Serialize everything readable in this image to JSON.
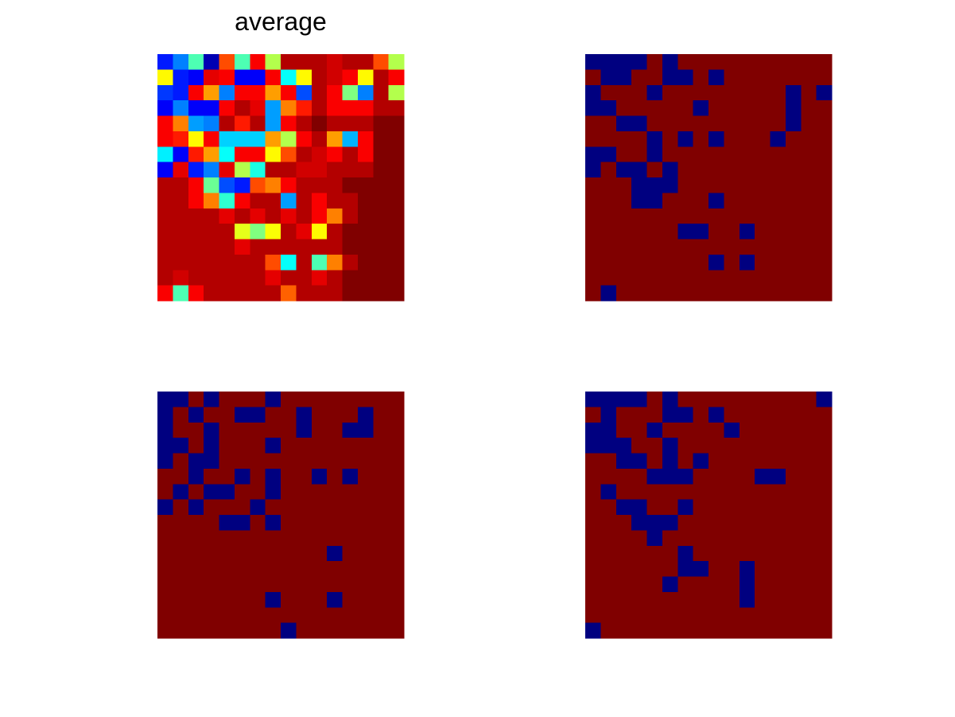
{
  "chart_data": [
    {
      "type": "heatmap",
      "title": "average",
      "colormap": "jet",
      "clim": [
        0,
        1
      ],
      "values": [
        [
          0.15,
          0.25,
          0.45,
          0.05,
          0.8,
          0.45,
          0.88,
          0.55,
          0.95,
          0.95,
          0.95,
          0.92,
          0.95,
          0.95,
          0.8,
          0.55
        ],
        [
          0.63,
          0.15,
          0.12,
          0.9,
          0.88,
          0.12,
          0.12,
          0.88,
          0.38,
          0.63,
          0.95,
          0.92,
          0.88,
          0.63,
          0.95,
          0.88
        ],
        [
          0.18,
          0.15,
          0.88,
          0.72,
          0.25,
          0.88,
          0.88,
          0.72,
          0.88,
          0.2,
          0.95,
          0.88,
          0.5,
          0.25,
          0.95,
          0.55
        ],
        [
          0.12,
          0.25,
          0.12,
          0.12,
          0.88,
          0.95,
          0.9,
          0.28,
          0.75,
          0.85,
          0.95,
          0.88,
          0.88,
          0.88,
          0.95,
          0.95
        ],
        [
          0.88,
          0.75,
          0.28,
          0.25,
          0.95,
          0.85,
          0.95,
          0.28,
          0.88,
          0.95,
          1,
          0.95,
          0.95,
          0.95,
          1,
          1
        ],
        [
          0.88,
          0.85,
          0.63,
          0.88,
          0.33,
          0.33,
          0.33,
          0.72,
          0.55,
          0.88,
          0.95,
          0.72,
          0.3,
          0.88,
          1,
          1
        ],
        [
          0.36,
          0.12,
          0.85,
          0.72,
          0.38,
          0.88,
          0.88,
          0.63,
          0.8,
          0.95,
          0.92,
          0.88,
          0.95,
          0.88,
          1,
          1
        ],
        [
          0.12,
          0.9,
          0.15,
          0.25,
          0.9,
          0.55,
          0.4,
          0.95,
          0.95,
          0.92,
          0.92,
          0.95,
          0.95,
          0.95,
          1,
          1
        ],
        [
          0.95,
          0.95,
          0.88,
          0.48,
          0.2,
          0.15,
          0.8,
          0.75,
          0.88,
          0.95,
          0.95,
          0.95,
          1,
          1,
          1,
          1
        ],
        [
          0.95,
          0.95,
          0.88,
          0.75,
          0.42,
          0.88,
          0.95,
          0.95,
          0.28,
          0.95,
          0.88,
          0.95,
          0.95,
          1,
          1,
          1
        ],
        [
          0.95,
          0.95,
          0.95,
          0.95,
          0.9,
          0.95,
          0.9,
          0.95,
          0.9,
          0.95,
          0.88,
          0.75,
          0.95,
          1,
          1,
          1
        ],
        [
          0.95,
          0.95,
          0.95,
          0.95,
          0.95,
          0.6,
          0.5,
          0.62,
          0.95,
          0.9,
          0.63,
          0.95,
          1,
          1,
          1,
          1
        ],
        [
          0.95,
          0.95,
          0.95,
          0.95,
          0.95,
          0.9,
          0.95,
          0.95,
          0.95,
          0.95,
          0.95,
          0.95,
          1,
          1,
          1,
          1
        ],
        [
          0.95,
          0.95,
          0.95,
          0.95,
          0.95,
          0.95,
          0.95,
          0.8,
          0.38,
          0.95,
          0.45,
          0.75,
          0.95,
          1,
          1,
          1
        ],
        [
          0.95,
          0.92,
          0.95,
          0.95,
          0.95,
          0.95,
          0.95,
          0.9,
          0.95,
          0.95,
          0.9,
          0.95,
          1,
          1,
          1,
          1
        ],
        [
          0.88,
          0.45,
          0.88,
          0.95,
          0.95,
          0.95,
          0.95,
          0.95,
          0.78,
          0.95,
          0.95,
          0.95,
          1,
          1,
          1,
          1
        ]
      ]
    },
    {
      "type": "heatmap",
      "colormap": "jet",
      "clim": [
        0,
        1
      ],
      "values": [
        [
          0,
          0,
          0,
          0,
          1,
          0,
          1,
          1,
          1,
          1,
          1,
          1,
          1,
          1,
          1,
          1
        ],
        [
          1,
          0,
          0,
          1,
          1,
          0,
          0,
          1,
          0,
          1,
          1,
          1,
          1,
          1,
          1,
          1
        ],
        [
          0,
          1,
          1,
          1,
          0,
          1,
          1,
          1,
          1,
          1,
          1,
          1,
          1,
          0,
          1,
          0
        ],
        [
          0,
          0,
          1,
          1,
          1,
          1,
          1,
          0,
          1,
          1,
          1,
          1,
          1,
          0,
          1,
          1
        ],
        [
          1,
          1,
          0,
          0,
          1,
          1,
          1,
          1,
          1,
          1,
          1,
          1,
          1,
          0,
          1,
          1
        ],
        [
          1,
          1,
          1,
          1,
          0,
          1,
          0,
          1,
          0,
          1,
          1,
          1,
          0,
          1,
          1,
          1
        ],
        [
          0,
          0,
          1,
          1,
          0,
          1,
          1,
          1,
          1,
          1,
          1,
          1,
          1,
          1,
          1,
          1
        ],
        [
          0,
          1,
          0,
          0,
          1,
          0,
          1,
          1,
          1,
          1,
          1,
          1,
          1,
          1,
          1,
          1
        ],
        [
          1,
          1,
          1,
          0,
          0,
          0,
          1,
          1,
          1,
          1,
          1,
          1,
          1,
          1,
          1,
          1
        ],
        [
          1,
          1,
          1,
          0,
          0,
          1,
          1,
          1,
          0,
          1,
          1,
          1,
          1,
          1,
          1,
          1
        ],
        [
          1,
          1,
          1,
          1,
          1,
          1,
          1,
          1,
          1,
          1,
          1,
          1,
          1,
          1,
          1,
          1
        ],
        [
          1,
          1,
          1,
          1,
          1,
          1,
          0,
          0,
          1,
          1,
          0,
          1,
          1,
          1,
          1,
          1
        ],
        [
          1,
          1,
          1,
          1,
          1,
          1,
          1,
          1,
          1,
          1,
          1,
          1,
          1,
          1,
          1,
          1
        ],
        [
          1,
          1,
          1,
          1,
          1,
          1,
          1,
          1,
          0,
          1,
          0,
          1,
          1,
          1,
          1,
          1
        ],
        [
          1,
          1,
          1,
          1,
          1,
          1,
          1,
          1,
          1,
          1,
          1,
          1,
          1,
          1,
          1,
          1
        ],
        [
          1,
          0,
          1,
          1,
          1,
          1,
          1,
          1,
          1,
          1,
          1,
          1,
          1,
          1,
          1,
          1
        ]
      ]
    },
    {
      "type": "heatmap",
      "colormap": "jet",
      "clim": [
        0,
        1
      ],
      "values": [
        [
          0,
          0,
          1,
          0,
          1,
          1,
          1,
          0,
          1,
          1,
          1,
          1,
          1,
          1,
          1,
          1
        ],
        [
          0,
          1,
          0,
          1,
          1,
          0,
          0,
          1,
          1,
          0,
          1,
          1,
          1,
          0,
          1,
          1
        ],
        [
          0,
          1,
          1,
          0,
          1,
          1,
          1,
          1,
          1,
          0,
          1,
          1,
          0,
          0,
          1,
          1
        ],
        [
          0,
          0,
          1,
          0,
          1,
          1,
          1,
          0,
          1,
          1,
          1,
          1,
          1,
          1,
          1,
          1
        ],
        [
          0,
          1,
          0,
          0,
          1,
          1,
          1,
          1,
          1,
          1,
          1,
          1,
          1,
          1,
          1,
          1
        ],
        [
          1,
          1,
          0,
          1,
          1,
          0,
          1,
          0,
          1,
          1,
          0,
          1,
          0,
          1,
          1,
          1
        ],
        [
          1,
          0,
          1,
          0,
          0,
          1,
          1,
          0,
          1,
          1,
          1,
          1,
          1,
          1,
          1,
          1
        ],
        [
          0,
          1,
          0,
          1,
          1,
          1,
          0,
          1,
          1,
          1,
          1,
          1,
          1,
          1,
          1,
          1
        ],
        [
          1,
          1,
          1,
          1,
          0,
          0,
          1,
          0,
          1,
          1,
          1,
          1,
          1,
          1,
          1,
          1
        ],
        [
          1,
          1,
          1,
          1,
          1,
          1,
          1,
          1,
          1,
          1,
          1,
          1,
          1,
          1,
          1,
          1
        ],
        [
          1,
          1,
          1,
          1,
          1,
          1,
          1,
          1,
          1,
          1,
          1,
          0,
          1,
          1,
          1,
          1
        ],
        [
          1,
          1,
          1,
          1,
          1,
          1,
          1,
          1,
          1,
          1,
          1,
          1,
          1,
          1,
          1,
          1
        ],
        [
          1,
          1,
          1,
          1,
          1,
          1,
          1,
          1,
          1,
          1,
          1,
          1,
          1,
          1,
          1,
          1
        ],
        [
          1,
          1,
          1,
          1,
          1,
          1,
          1,
          0,
          1,
          1,
          1,
          0,
          1,
          1,
          1,
          1
        ],
        [
          1,
          1,
          1,
          1,
          1,
          1,
          1,
          1,
          1,
          1,
          1,
          1,
          1,
          1,
          1,
          1
        ],
        [
          1,
          1,
          1,
          1,
          1,
          1,
          1,
          1,
          0,
          1,
          1,
          1,
          1,
          1,
          1,
          1
        ]
      ]
    },
    {
      "type": "heatmap",
      "colormap": "jet",
      "clim": [
        0,
        1
      ],
      "values": [
        [
          0,
          0,
          0,
          0,
          1,
          0,
          1,
          1,
          1,
          1,
          1,
          1,
          1,
          1,
          1,
          0
        ],
        [
          1,
          0,
          1,
          1,
          1,
          0,
          0,
          1,
          0,
          1,
          1,
          1,
          1,
          1,
          1,
          1
        ],
        [
          0,
          0,
          1,
          1,
          0,
          1,
          1,
          1,
          1,
          0,
          1,
          1,
          1,
          1,
          1,
          1
        ],
        [
          0,
          0,
          0,
          1,
          1,
          0,
          1,
          1,
          1,
          1,
          1,
          1,
          1,
          1,
          1,
          1
        ],
        [
          1,
          1,
          0,
          0,
          1,
          0,
          1,
          0,
          1,
          1,
          1,
          1,
          1,
          1,
          1,
          1
        ],
        [
          1,
          1,
          1,
          1,
          0,
          0,
          0,
          1,
          1,
          1,
          1,
          0,
          0,
          1,
          1,
          1
        ],
        [
          1,
          0,
          1,
          1,
          1,
          1,
          1,
          1,
          1,
          1,
          1,
          1,
          1,
          1,
          1,
          1
        ],
        [
          1,
          1,
          0,
          0,
          1,
          1,
          0,
          1,
          1,
          1,
          1,
          1,
          1,
          1,
          1,
          1
        ],
        [
          1,
          1,
          1,
          0,
          0,
          0,
          1,
          1,
          1,
          1,
          1,
          1,
          1,
          1,
          1,
          1
        ],
        [
          1,
          1,
          1,
          1,
          0,
          1,
          1,
          1,
          1,
          1,
          1,
          1,
          1,
          1,
          1,
          1
        ],
        [
          1,
          1,
          1,
          1,
          1,
          1,
          0,
          1,
          1,
          1,
          1,
          1,
          1,
          1,
          1,
          1
        ],
        [
          1,
          1,
          1,
          1,
          1,
          1,
          0,
          0,
          1,
          1,
          0,
          1,
          1,
          1,
          1,
          1
        ],
        [
          1,
          1,
          1,
          1,
          1,
          0,
          1,
          1,
          1,
          1,
          0,
          1,
          1,
          1,
          1,
          1
        ],
        [
          1,
          1,
          1,
          1,
          1,
          1,
          1,
          1,
          1,
          1,
          0,
          1,
          1,
          1,
          1,
          1
        ],
        [
          1,
          1,
          1,
          1,
          1,
          1,
          1,
          1,
          1,
          1,
          1,
          1,
          1,
          1,
          1,
          1
        ],
        [
          0,
          1,
          1,
          1,
          1,
          1,
          1,
          1,
          1,
          1,
          1,
          1,
          1,
          1,
          1,
          1
        ]
      ]
    }
  ]
}
